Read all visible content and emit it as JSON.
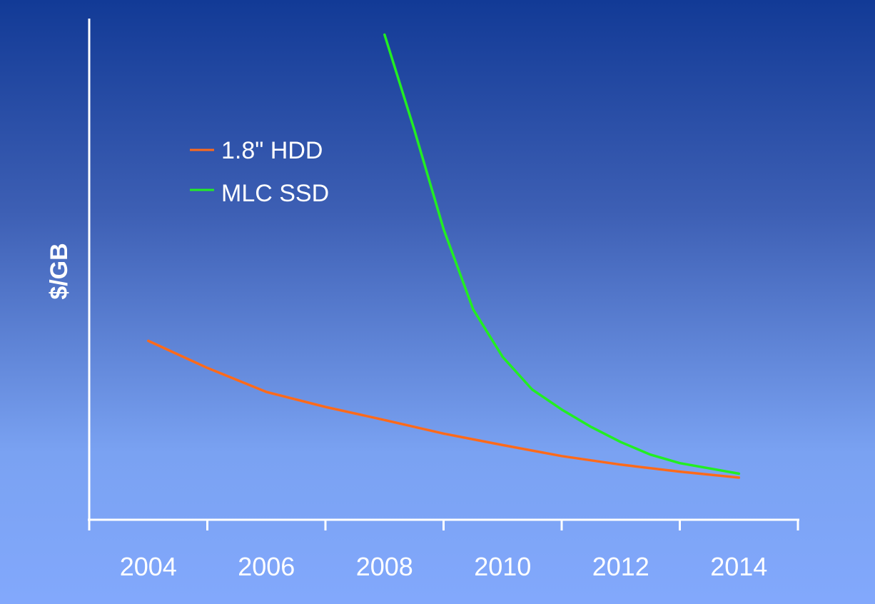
{
  "chart_data": {
    "type": "line",
    "title": "",
    "xlabel": "",
    "ylabel": "$/GB",
    "xlim": [
      2003,
      2015
    ],
    "ylim": [
      0,
      100
    ],
    "x_ticks": [
      "2004",
      "2006",
      "2008",
      "2010",
      "2012",
      "2014"
    ],
    "y_ticks": [],
    "grid": false,
    "legend_position": "top-left",
    "series": [
      {
        "name": "1.8\" HDD",
        "color": "#ff6a1a",
        "points": [
          [
            2004,
            35.7
          ],
          [
            2005,
            30.3
          ],
          [
            2006,
            25.5
          ],
          [
            2007,
            22.5
          ],
          [
            2008,
            19.9
          ],
          [
            2009,
            17.2
          ],
          [
            2010,
            14.9
          ],
          [
            2011,
            12.7
          ],
          [
            2012,
            11.0
          ],
          [
            2013,
            9.6
          ],
          [
            2014,
            8.4
          ]
        ]
      },
      {
        "name": "MLC SSD",
        "color": "#22ee22",
        "points": [
          [
            2008,
            96.8
          ],
          [
            2008.5,
            78.0
          ],
          [
            2009,
            58.0
          ],
          [
            2009.5,
            42.0
          ],
          [
            2010,
            32.5
          ],
          [
            2010.5,
            26.0
          ],
          [
            2011,
            22.0
          ],
          [
            2011.5,
            18.5
          ],
          [
            2012,
            15.5
          ],
          [
            2012.5,
            13.0
          ],
          [
            2013,
            11.3
          ],
          [
            2014,
            9.2
          ]
        ]
      }
    ]
  }
}
